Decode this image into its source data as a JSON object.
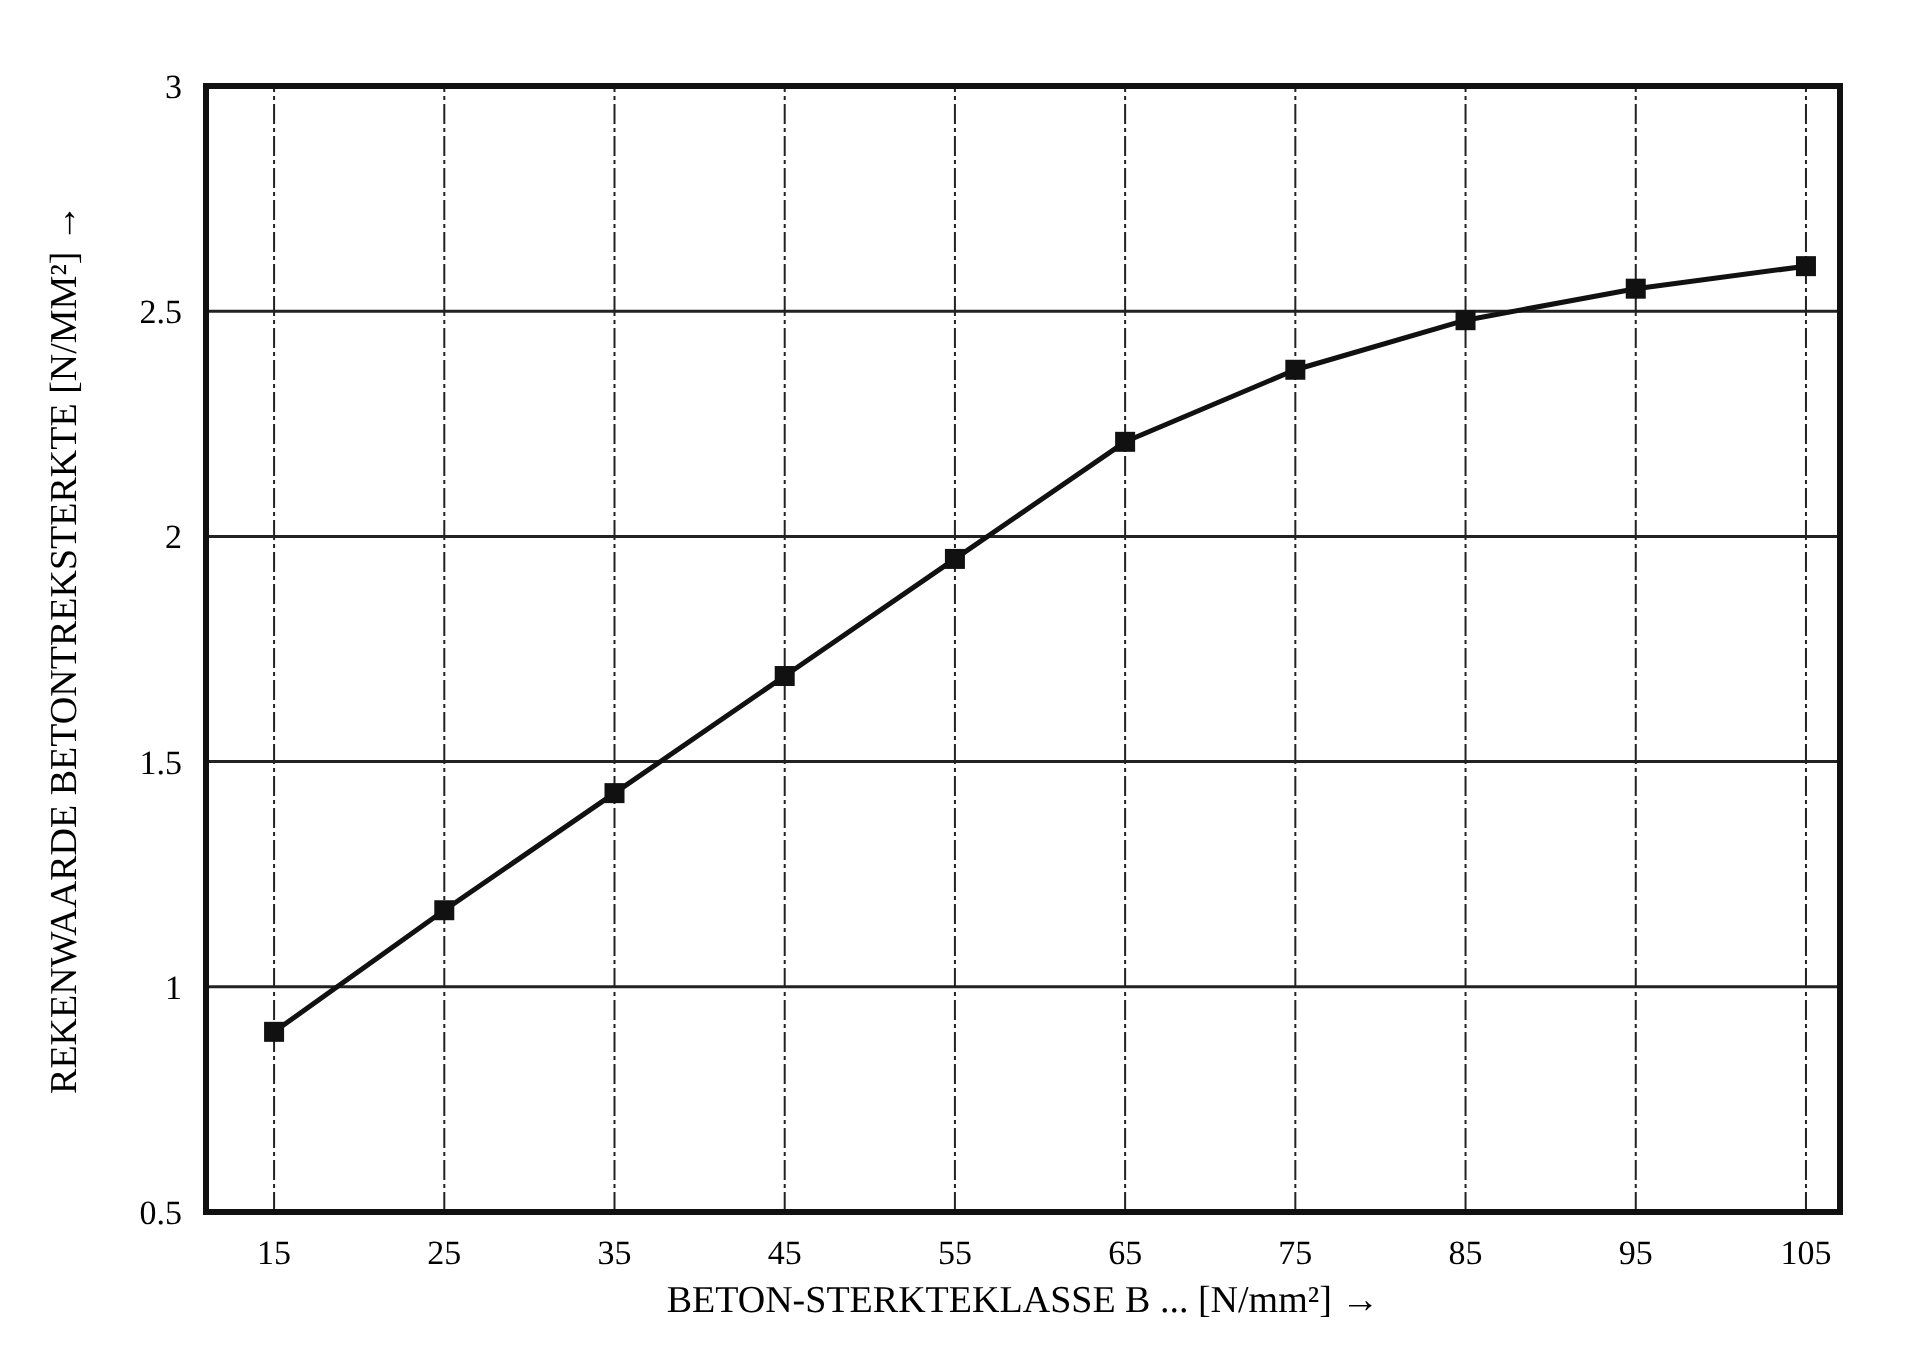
{
  "chart_data": {
    "type": "line",
    "xlabel": "BETON-STERKTEKLASSE B ... [N/mm²] →",
    "ylabel": "REKENWAARDE BETONTREKSTERKTE [N/MM²] →",
    "x": [
      15,
      25,
      35,
      45,
      55,
      65,
      75,
      85,
      95,
      105
    ],
    "series": [
      {
        "color": "#111111",
        "values": [
          0.9,
          1.17,
          1.43,
          1.69,
          1.95,
          2.21,
          2.37,
          2.48,
          2.55,
          2.6
        ]
      }
    ],
    "xlim": [
      11,
      107
    ],
    "xticks": [
      15,
      25,
      35,
      45,
      55,
      65,
      75,
      85,
      95,
      105
    ],
    "ylim": [
      0.5,
      3
    ],
    "yticks": [
      0.5,
      1,
      1.5,
      2,
      2.5,
      3
    ],
    "grid": true,
    "marker": "square",
    "line_style": "solid"
  }
}
